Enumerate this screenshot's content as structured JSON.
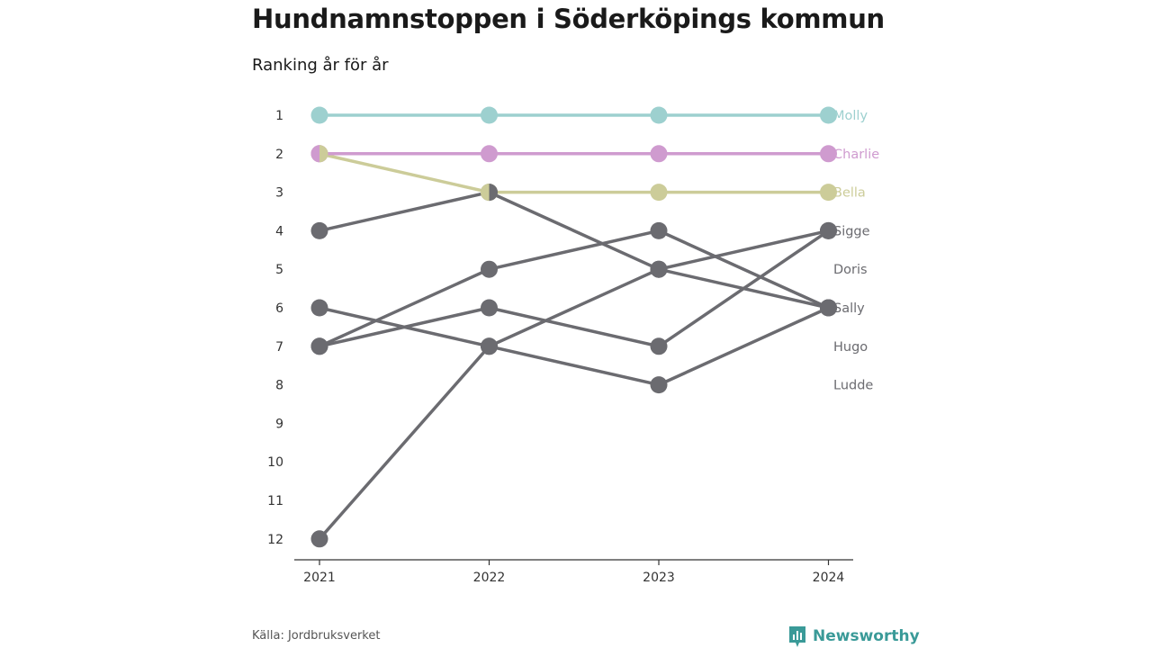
{
  "header": {
    "title": "Hundnamnstoppen i Söderköpings kommun",
    "subtitle": "Ranking år för år"
  },
  "footer": {
    "source": "Källa: Jordbruksverket",
    "brand": "Newsworthy"
  },
  "colors": {
    "Molly": "#9dd0cf",
    "Charlie": "#cf9bcf",
    "Bella": "#cccc99",
    "other": "#6b6b70",
    "axis": "#333333",
    "brand": "#3a9a98"
  },
  "chart_data": {
    "type": "line",
    "x": [
      "2021",
      "2022",
      "2023",
      "2024"
    ],
    "y_ticks": [
      "1",
      "2",
      "3",
      "4",
      "5",
      "6",
      "7",
      "8",
      "9",
      "10",
      "11",
      "12"
    ],
    "ylim": [
      1,
      12
    ],
    "y_inverted": true,
    "series": [
      {
        "name": "Molly",
        "values": [
          1,
          1,
          1,
          1
        ],
        "highlight": true
      },
      {
        "name": "Charlie",
        "values": [
          2,
          2,
          2,
          2
        ],
        "highlight": true
      },
      {
        "name": "Bella",
        "values": [
          2,
          3,
          3,
          3
        ],
        "highlight": true
      },
      {
        "name": "Sigge",
        "values": [
          12,
          7,
          5,
          4
        ],
        "highlight": false
      },
      {
        "name": "Doris",
        "values": [
          4,
          3,
          5,
          6
        ],
        "highlight": false
      },
      {
        "name": "Sally",
        "values": [
          7,
          5,
          4,
          6
        ],
        "highlight": false
      },
      {
        "name": "Hugo",
        "values": [
          7,
          6,
          7,
          4
        ],
        "highlight": false
      },
      {
        "name": "Ludde",
        "values": [
          6,
          7,
          8,
          6
        ],
        "highlight": false
      }
    ],
    "end_labels": [
      "Molly",
      "Charlie",
      "Bella",
      "Sigge",
      "Doris",
      "Sally",
      "Hugo",
      "Ludde"
    ],
    "end_label_ranks": [
      1,
      2,
      3,
      4,
      5,
      6,
      7,
      8
    ]
  }
}
